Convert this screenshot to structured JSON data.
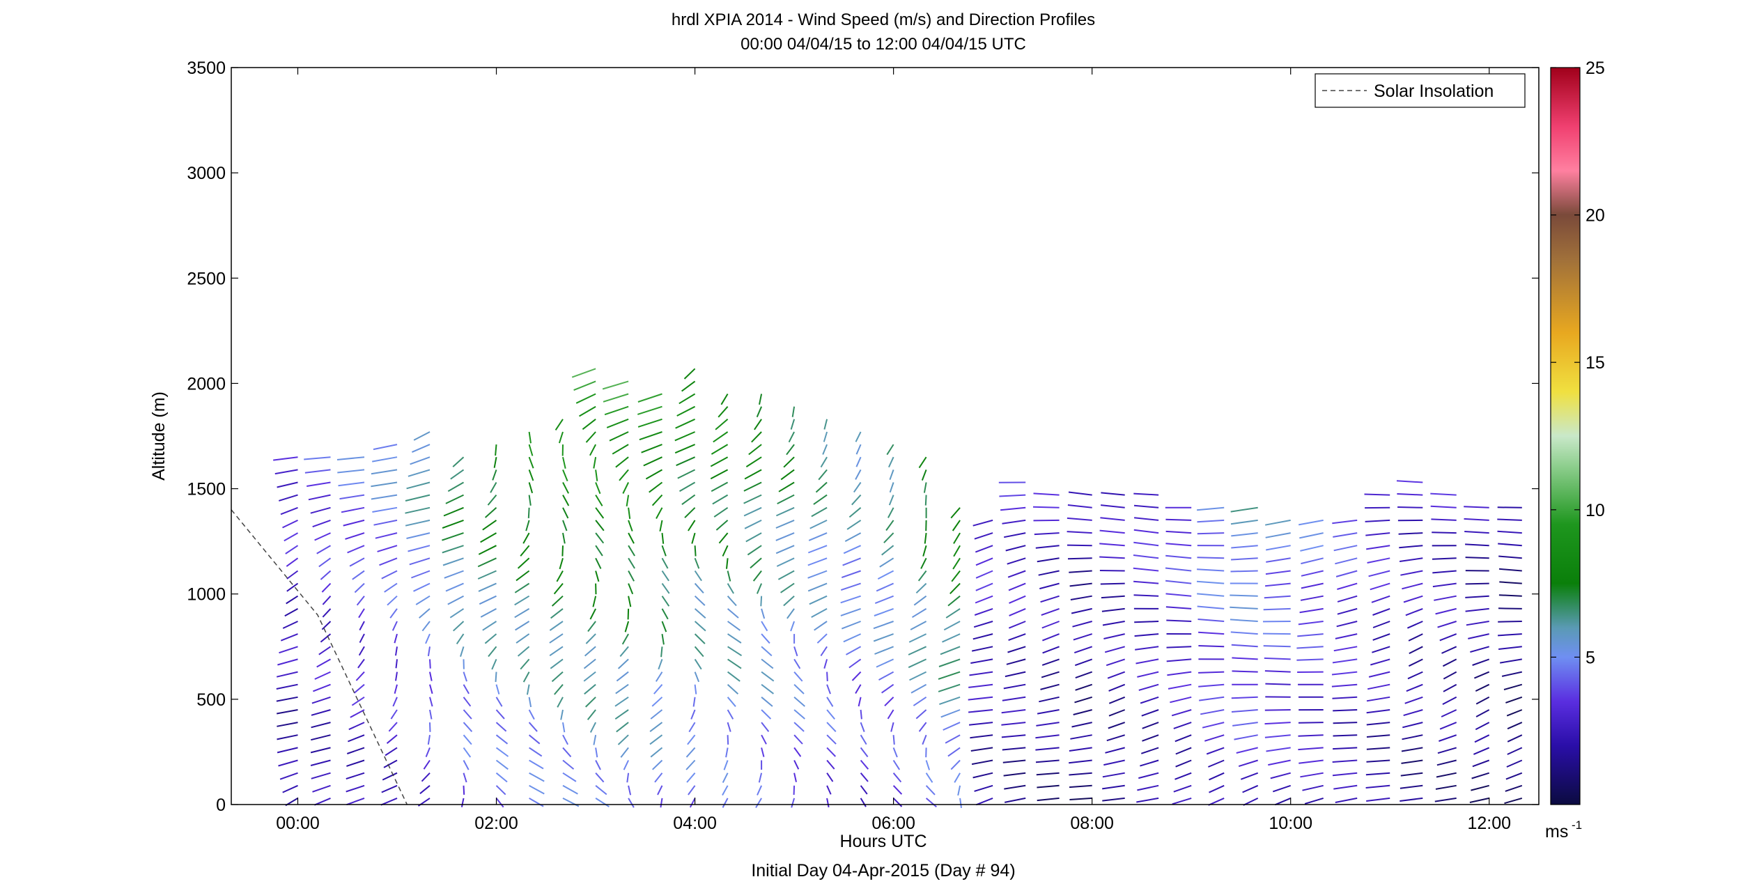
{
  "chart_data": {
    "type": "wind-barb-profile",
    "title": "hrdl XPIA 2014 - Wind Speed (m/s) and Direction Profiles",
    "subtitle": "00:00 04/04/15 to 12:00 04/04/15  UTC",
    "xlabel": "Hours UTC",
    "xlabel2": "Initial Day 04-Apr-2015 (Day # 94)",
    "ylabel": "Altitude (m)",
    "xlim": [
      -0.67,
      12.5
    ],
    "ylim": [
      0,
      3500
    ],
    "x_ticks": [
      0,
      2,
      4,
      6,
      8,
      10,
      12
    ],
    "x_tick_labels": [
      "00:00",
      "02:00",
      "04:00",
      "06:00",
      "08:00",
      "10:00",
      "12:00"
    ],
    "y_ticks": [
      0,
      500,
      1000,
      1500,
      2000,
      2500,
      3000,
      3500
    ],
    "y_tick_labels": [
      "0",
      "500",
      "1000",
      "1500",
      "2000",
      "2500",
      "3000",
      "3500"
    ],
    "legend": {
      "entries": [
        "Solar Insolation"
      ],
      "position": "top-right"
    },
    "solar_insolation": {
      "x": [
        -0.67,
        0.2,
        0.7,
        1.1
      ],
      "y": [
        1400,
        900,
        400,
        0
      ]
    },
    "colorbar": {
      "unit_label": "ms",
      "unit_exponent": "-1",
      "range": [
        0,
        25
      ],
      "ticks": [
        5,
        10,
        15,
        20,
        25
      ],
      "tick_labels": [
        "5",
        "10",
        "15",
        "20",
        "25"
      ],
      "colors": [
        "#0b0b40",
        "#2a0ea8",
        "#5a2ee0",
        "#6f8ff2",
        "#5a9ab4",
        "#0a7f0a",
        "#1e961e",
        "#8fcf8f",
        "#c9e8c9",
        "#f0e040",
        "#e8a820",
        "#a0703a",
        "#7a4a3a",
        "#ff80a0",
        "#f04070",
        "#a0001a"
      ],
      "stops": [
        0,
        0.08,
        0.14,
        0.2,
        0.24,
        0.3,
        0.38,
        0.46,
        0.5,
        0.56,
        0.64,
        0.74,
        0.8,
        0.86,
        0.92,
        1
      ]
    },
    "profiles": [
      {
        "hour": 0.0,
        "top": 1700,
        "dir": 240,
        "speed": 3.0
      },
      {
        "hour": 0.33,
        "top": 1690,
        "dir": 235,
        "speed": 3.5
      },
      {
        "hour": 0.67,
        "top": 1680,
        "dir": 230,
        "speed": 4.0
      },
      {
        "hour": 1.0,
        "top": 1720,
        "dir": 225,
        "speed": 4.5
      },
      {
        "hour": 1.33,
        "top": 1800,
        "dir": 220,
        "speed": 5.5
      },
      {
        "hour": 1.67,
        "top": 1700,
        "dir": 210,
        "speed": 6.5
      },
      {
        "hour": 2.0,
        "top": 1720,
        "dir": 205,
        "speed": 7.0
      },
      {
        "hour": 2.33,
        "top": 1800,
        "dir": 200,
        "speed": 7.5
      },
      {
        "hour": 2.67,
        "top": 1850,
        "dir": 200,
        "speed": 8.0
      },
      {
        "hour": 3.0,
        "top": 2100,
        "dir": 200,
        "speed": 8.5
      },
      {
        "hour": 3.33,
        "top": 2050,
        "dir": 205,
        "speed": 8.5
      },
      {
        "hour": 3.67,
        "top": 2000,
        "dir": 205,
        "speed": 8.0
      },
      {
        "hour": 4.0,
        "top": 2100,
        "dir": 200,
        "speed": 7.5
      },
      {
        "hour": 4.33,
        "top": 2000,
        "dir": 195,
        "speed": 7.5
      },
      {
        "hour": 4.67,
        "top": 1950,
        "dir": 200,
        "speed": 7.0
      },
      {
        "hour": 5.0,
        "top": 1900,
        "dir": 205,
        "speed": 6.5
      },
      {
        "hour": 5.33,
        "top": 1850,
        "dir": 210,
        "speed": 6.0
      },
      {
        "hour": 5.67,
        "top": 1800,
        "dir": 215,
        "speed": 5.5
      },
      {
        "hour": 6.0,
        "top": 1750,
        "dir": 215,
        "speed": 6.0
      },
      {
        "hour": 6.33,
        "top": 1700,
        "dir": 210,
        "speed": 7.0
      },
      {
        "hour": 6.67,
        "top": 1450,
        "dir": 220,
        "speed": 7.5
      },
      {
        "hour": 7.0,
        "top": 1400,
        "dir": 250,
        "speed": 3.0
      },
      {
        "hour": 7.33,
        "top": 1550,
        "dir": 255,
        "speed": 2.8
      },
      {
        "hour": 7.67,
        "top": 1500,
        "dir": 260,
        "speed": 2.5
      },
      {
        "hour": 8.0,
        "top": 1500,
        "dir": 265,
        "speed": 2.0
      },
      {
        "hour": 8.33,
        "top": 1500,
        "dir": 265,
        "speed": 2.5
      },
      {
        "hour": 8.67,
        "top": 1480,
        "dir": 270,
        "speed": 3.0
      },
      {
        "hour": 9.0,
        "top": 1460,
        "dir": 270,
        "speed": 3.5
      },
      {
        "hour": 9.33,
        "top": 1450,
        "dir": 270,
        "speed": 4.5
      },
      {
        "hour": 9.67,
        "top": 1420,
        "dir": 270,
        "speed": 5.0
      },
      {
        "hour": 10.0,
        "top": 1400,
        "dir": 268,
        "speed": 4.5
      },
      {
        "hour": 10.33,
        "top": 1400,
        "dir": 265,
        "speed": 4.0
      },
      {
        "hour": 10.67,
        "top": 1380,
        "dir": 262,
        "speed": 3.5
      },
      {
        "hour": 11.0,
        "top": 1500,
        "dir": 260,
        "speed": 3.0
      },
      {
        "hour": 11.33,
        "top": 1550,
        "dir": 255,
        "speed": 2.5
      },
      {
        "hour": 11.67,
        "top": 1480,
        "dir": 255,
        "speed": 2.5
      },
      {
        "hour": 12.0,
        "top": 1450,
        "dir": 258,
        "speed": 2.0
      },
      {
        "hour": 12.33,
        "top": 1440,
        "dir": 265,
        "speed": 1.5
      }
    ]
  }
}
